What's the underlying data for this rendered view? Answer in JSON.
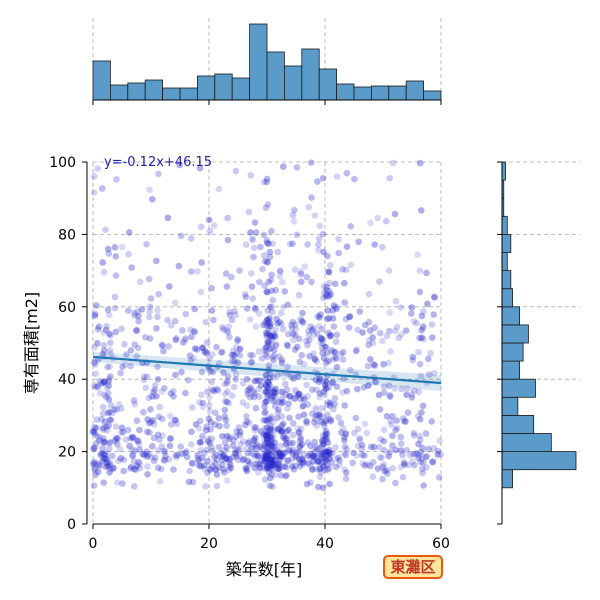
{
  "chart_data": {
    "type": "scatter",
    "xlabel": "築年数[年]",
    "ylabel": "専有面積[m2]",
    "xlim": [
      0,
      60
    ],
    "ylim": [
      0,
      100
    ],
    "x_ticks": [
      0,
      20,
      40,
      60
    ],
    "y_ticks": [
      0,
      20,
      40,
      60,
      80,
      100
    ],
    "grid": true,
    "annotation": "y=-0.12x+46.15",
    "regression": {
      "slope": -0.12,
      "intercept": 46.15
    },
    "badge_label": "東灘区",
    "colors": {
      "points": "#2a2acc",
      "regression_line": "#1f77b4",
      "histogram_fill": "#5a9bc9",
      "badge_border": "#e8580f",
      "badge_fill": "#ffe59a",
      "badge_text": "#c0392b",
      "annotation_text": "#1f1fa8"
    },
    "marginal_x_histogram": {
      "bin_edges": [
        0,
        3,
        6,
        9,
        12,
        15,
        18,
        21,
        24,
        27,
        30,
        33,
        36,
        39,
        42,
        45,
        48,
        51,
        54,
        57,
        60
      ],
      "counts": [
        39,
        15,
        17,
        20,
        12,
        12,
        24,
        26,
        22,
        76,
        48,
        34,
        51,
        31,
        16,
        13,
        14,
        14,
        19,
        9
      ]
    },
    "marginal_y_histogram": {
      "bin_edges": [
        10,
        15,
        20,
        25,
        30,
        35,
        40,
        45,
        50,
        55,
        60,
        65,
        70,
        75,
        80,
        85,
        90,
        95,
        100
      ],
      "counts": [
        6,
        42,
        28,
        18,
        9,
        19,
        10,
        12,
        15,
        10,
        6,
        5,
        3,
        5,
        3,
        1,
        1,
        2
      ]
    }
  }
}
